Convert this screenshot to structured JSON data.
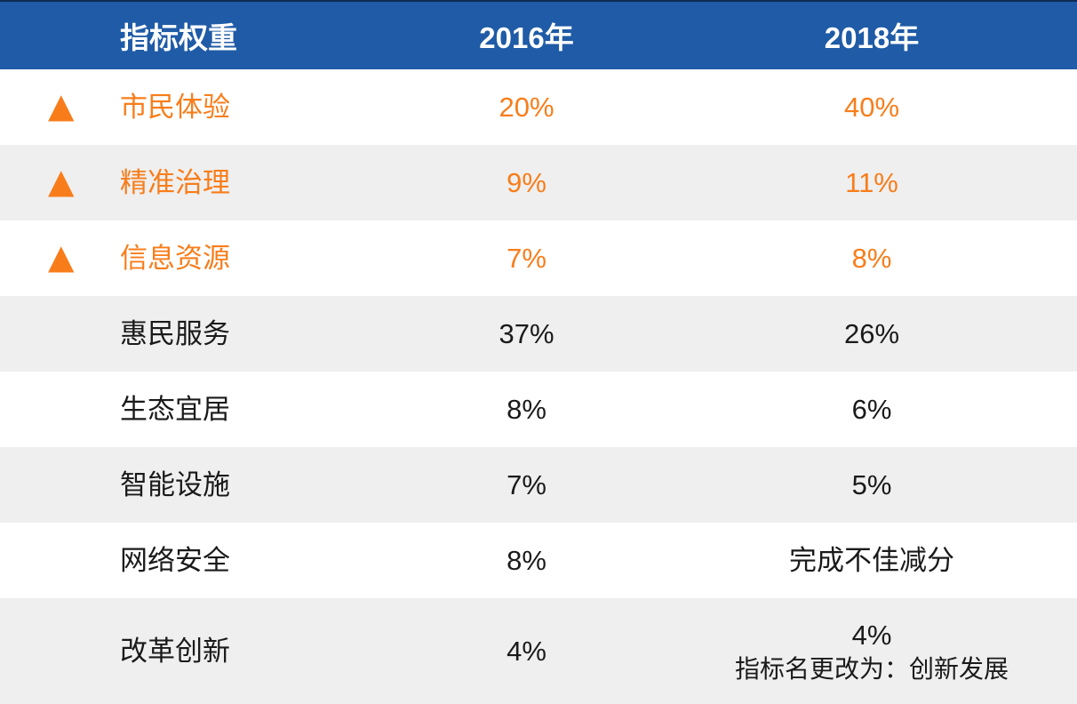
{
  "colors": {
    "header_bg": "#1F5BA6",
    "header_top_border": "#0D2B55",
    "header_text": "#FFFFFF",
    "highlight_orange": "#F87D1A",
    "stripe_gray": "#EFEFEF",
    "body_text": "#1A1A1A"
  },
  "icons": {
    "up_triangle": "▲"
  },
  "table": {
    "header": {
      "indicator": "指标权重",
      "y2016": "2016年",
      "y2018": "2018年"
    },
    "rows": [
      {
        "indicator": "市民体验",
        "y2016": "20%",
        "y2018": "40%",
        "highlighted": true
      },
      {
        "indicator": "精准治理",
        "y2016": "9%",
        "y2018": "11%",
        "highlighted": true
      },
      {
        "indicator": "信息资源",
        "y2016": "7%",
        "y2018": "8%",
        "highlighted": true
      },
      {
        "indicator": "惠民服务",
        "y2016": "37%",
        "y2018": "26%",
        "highlighted": false
      },
      {
        "indicator": "生态宜居",
        "y2016": "8%",
        "y2018": "6%",
        "highlighted": false
      },
      {
        "indicator": "智能设施",
        "y2016": "7%",
        "y2018": "5%",
        "highlighted": false
      },
      {
        "indicator": "网络安全",
        "y2016": "8%",
        "y2018": "完成不佳减分",
        "highlighted": false
      },
      {
        "indicator": "改革创新",
        "y2016": "4%",
        "y2018": "4%",
        "y2018_note": "指标名更改为：创新发展",
        "highlighted": false
      }
    ]
  }
}
